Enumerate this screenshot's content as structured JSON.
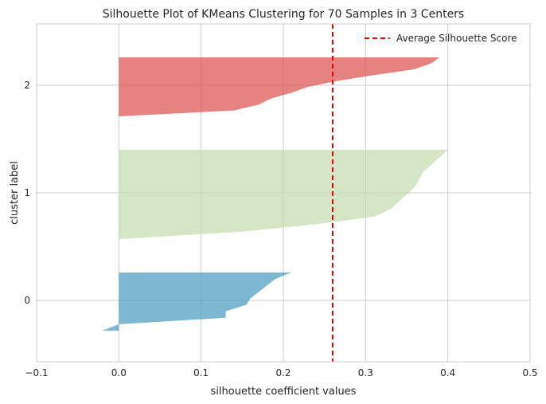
{
  "chart_data": {
    "type": "area",
    "title": "Silhouette Plot of KMeans Clustering for 70 Samples in 3 Centers",
    "xlabel": "silhouette coefficient values",
    "ylabel": "cluster label",
    "xlim": [
      -0.1,
      0.5
    ],
    "x_ticks": [
      -0.1,
      0.0,
      0.1,
      0.2,
      0.3,
      0.4,
      0.5
    ],
    "x_tick_labels": [
      "−0.1",
      "0.0",
      "0.1",
      "0.2",
      "0.3",
      "0.4",
      "0.5"
    ],
    "y_ticks": [
      0,
      1,
      2
    ],
    "y_tick_labels": [
      "0",
      "1",
      "2"
    ],
    "grid": true,
    "legend": {
      "placement": "top-right",
      "entries": [
        "Average Silhouette Score"
      ]
    },
    "average_silhouette_score": 0.26,
    "average_line_color": "#ff0000",
    "clusters": [
      {
        "label": "0",
        "color": "#4c9bbf",
        "silhouette_values": [
          0.21,
          0.19,
          0.18,
          0.17,
          0.16,
          0.155,
          0.13,
          0.13,
          0.0,
          -0.02
        ]
      },
      {
        "label": "1",
        "color": "#c3dcae",
        "silhouette_values": [
          0.4,
          0.39,
          0.38,
          0.37,
          0.365,
          0.36,
          0.35,
          0.34,
          0.33,
          0.31,
          0.24,
          0.15,
          0.0
        ]
      },
      {
        "label": "2",
        "color": "#d9534f",
        "silhouette_values": [
          0.39,
          0.38,
          0.36,
          0.31,
          0.265,
          0.23,
          0.21,
          0.185,
          0.17,
          0.14,
          0.0
        ]
      }
    ]
  }
}
